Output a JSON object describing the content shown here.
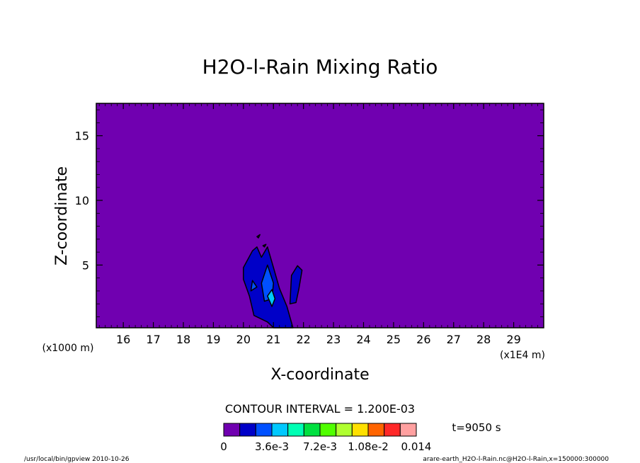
{
  "chart_data": {
    "type": "heatmap",
    "title": "H2O-l-Rain Mixing Ratio",
    "xlabel": "X-coordinate",
    "ylabel": "Z-coordinate",
    "x_unit_left": "(x1000 m)",
    "x_unit_right": "(x1E4 m)",
    "xlim": [
      15.1,
      30.0
    ],
    "ylim": [
      0.15,
      17.5
    ],
    "x_ticks": [
      16,
      17,
      18,
      19,
      20,
      21,
      22,
      23,
      24,
      25,
      26,
      27,
      28,
      29
    ],
    "x_tick_labels": [
      "16",
      "17",
      "18",
      "19",
      "20",
      "21",
      "22",
      "23",
      "24",
      "25",
      "26",
      "27",
      "28",
      "29"
    ],
    "y_ticks": [
      5,
      10,
      15
    ],
    "y_tick_labels": [
      "5",
      "10",
      "15"
    ],
    "background_level_color": "#7000b0",
    "contour_interval_text": "CONTOUR INTERVAL = 1.200E-03",
    "time_text": "t=9050 s",
    "colorbar": {
      "colors": [
        "#7000b0",
        "#0000c8",
        "#0050ff",
        "#00c8ff",
        "#00ffb4",
        "#00e040",
        "#50ff00",
        "#b0ff30",
        "#ffe000",
        "#ff6400",
        "#ff2828",
        "#ffa0a0"
      ],
      "labels": [
        "0",
        "3.6e-3",
        "7.2e-3",
        "1.08e-2",
        "0.014"
      ],
      "label_positions": [
        0,
        3,
        6,
        9,
        12
      ]
    },
    "regions": [
      {
        "level": 1,
        "color": "#0000c8",
        "points": [
          [
            20.35,
            1.1
          ],
          [
            20.2,
            2.6
          ],
          [
            20.0,
            3.9
          ],
          [
            20.0,
            4.8
          ],
          [
            20.3,
            6.1
          ],
          [
            20.45,
            6.4
          ],
          [
            20.6,
            5.6
          ],
          [
            20.8,
            6.4
          ],
          [
            21.0,
            4.8
          ],
          [
            21.2,
            3.2
          ],
          [
            21.45,
            1.8
          ],
          [
            21.65,
            0.15
          ],
          [
            21.0,
            0.15
          ],
          [
            20.8,
            0.6
          ]
        ]
      },
      {
        "level": 1,
        "color": "#0000c8",
        "points": [
          [
            21.55,
            2.0
          ],
          [
            21.6,
            4.2
          ],
          [
            21.8,
            4.95
          ],
          [
            21.95,
            4.6
          ],
          [
            21.85,
            3.2
          ],
          [
            21.75,
            2.1
          ]
        ]
      },
      {
        "level": 2,
        "color": "#0050ff",
        "points": [
          [
            20.7,
            2.2
          ],
          [
            20.6,
            3.6
          ],
          [
            20.8,
            5.0
          ],
          [
            21.0,
            3.6
          ],
          [
            20.95,
            2.4
          ]
        ]
      },
      {
        "level": 2,
        "color": "#0050ff",
        "points": [
          [
            20.25,
            3.0
          ],
          [
            20.3,
            3.8
          ],
          [
            20.45,
            3.3
          ]
        ]
      },
      {
        "level": 3,
        "color": "#00c8ff",
        "points": [
          [
            20.8,
            2.6
          ],
          [
            20.95,
            1.8
          ],
          [
            21.05,
            2.4
          ],
          [
            20.95,
            3.1
          ]
        ]
      },
      {
        "level": 1,
        "color": "#0000c8",
        "points": [
          [
            20.45,
            7.2
          ],
          [
            20.55,
            7.35
          ],
          [
            20.5,
            7.1
          ]
        ]
      },
      {
        "level": 1,
        "color": "#0000c8",
        "points": [
          [
            20.65,
            6.5
          ],
          [
            20.75,
            6.6
          ],
          [
            20.7,
            6.4
          ]
        ]
      }
    ],
    "footer_left": "/usr/local/bin/gpview   2010-10-26",
    "footer_right": "arare-earth_H2O-l-Rain.nc@H2O-l-Rain,x=150000:300000"
  }
}
